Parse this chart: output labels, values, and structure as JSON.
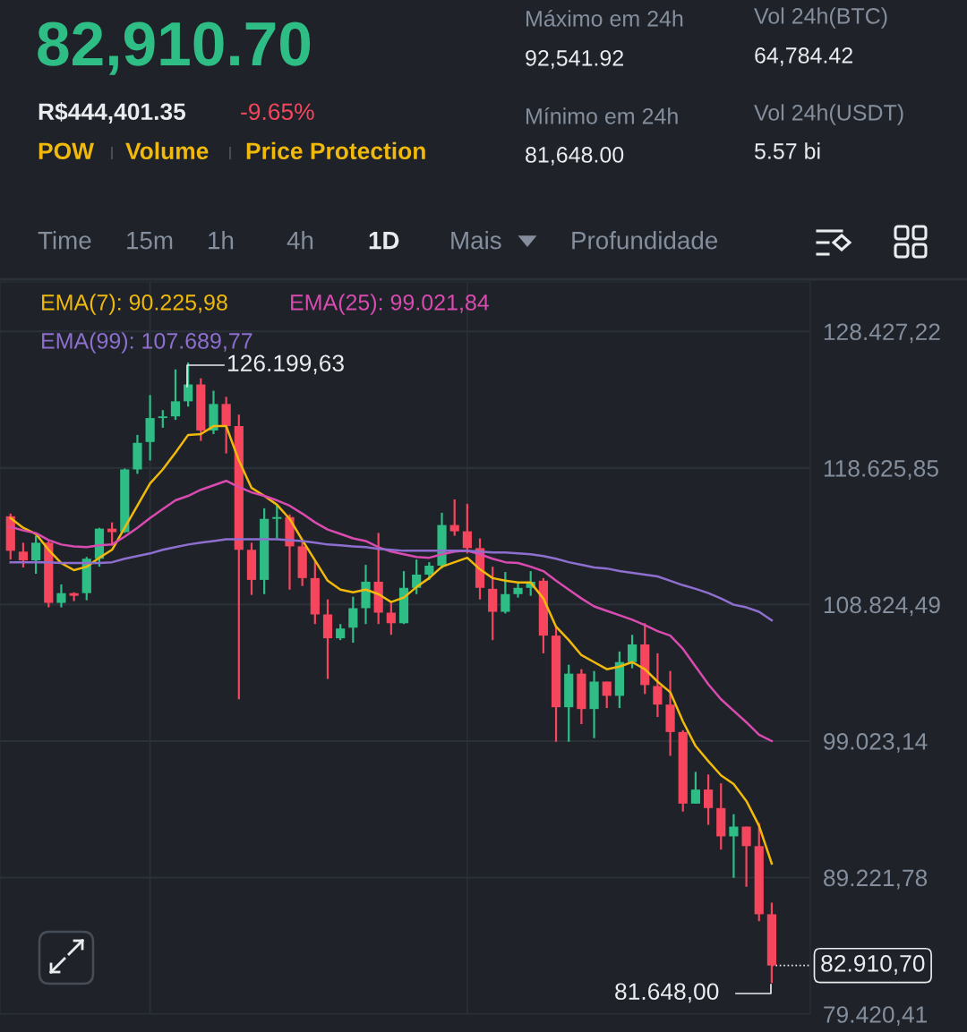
{
  "chart_data": {
    "type": "candlestick",
    "title": "82,910.70",
    "categories": [
      null,
      null,
      null,
      null,
      null,
      null,
      null,
      null,
      null,
      null,
      null,
      null,
      null,
      null,
      null,
      null,
      null,
      null,
      null,
      null,
      null,
      null,
      null,
      null,
      null,
      null,
      null,
      null,
      null,
      null,
      null,
      null,
      null,
      null,
      null,
      null,
      null,
      null,
      null,
      null,
      null,
      null,
      null,
      null,
      null,
      null,
      null,
      null,
      null,
      null,
      null,
      null,
      null,
      null,
      null,
      null,
      null,
      null,
      null,
      null,
      null
    ],
    "ohlc": [
      [
        115160,
        115350,
        112050,
        112680
      ],
      [
        112620,
        113260,
        111480,
        111990
      ],
      [
        111990,
        113760,
        111030,
        113260
      ],
      [
        113260,
        113380,
        108620,
        108940
      ],
      [
        108940,
        110270,
        108620,
        109640
      ],
      [
        109640,
        109700,
        109070,
        109450
      ],
      [
        109640,
        112240,
        109130,
        112110
      ],
      [
        112110,
        114330,
        111540,
        114270
      ],
      [
        114270,
        114720,
        113070,
        114020
      ],
      [
        114020,
        118590,
        113960,
        118520
      ],
      [
        118520,
        121000,
        118210,
        120430
      ],
      [
        120490,
        123860,
        119160,
        122210
      ],
      [
        122210,
        122780,
        121510,
        122330
      ],
      [
        122330,
        125700,
        122080,
        123410
      ],
      [
        123410,
        126199.63,
        123030,
        124620
      ],
      [
        124620,
        125060,
        120560,
        121320
      ],
      [
        121320,
        124170,
        121060,
        123220
      ],
      [
        123220,
        123730,
        119670,
        121630
      ],
      [
        121630,
        122460,
        102020,
        112750
      ],
      [
        112750,
        113260,
        109510,
        110590
      ],
      [
        110590,
        115730,
        109570,
        114970
      ],
      [
        114970,
        115920,
        113570,
        115100
      ],
      [
        115100,
        115290,
        109890,
        113000
      ],
      [
        113000,
        113380,
        110150,
        110720
      ],
      [
        110720,
        111920,
        107420,
        108110
      ],
      [
        108110,
        109190,
        103480,
        106400
      ],
      [
        106400,
        107420,
        106270,
        107100
      ],
      [
        107160,
        109380,
        106080,
        108560
      ],
      [
        108560,
        111670,
        107420,
        110460
      ],
      [
        110460,
        113960,
        107420,
        108240
      ],
      [
        108240,
        108940,
        106650,
        107480
      ],
      [
        107480,
        111220,
        107420,
        110020
      ],
      [
        110020,
        112050,
        109570,
        110970
      ],
      [
        110970,
        111860,
        110590,
        111610
      ],
      [
        111610,
        115410,
        111410,
        114530
      ],
      [
        114530,
        116370,
        113760,
        114080
      ],
      [
        114080,
        116050,
        112490,
        112870
      ],
      [
        112870,
        113570,
        109190,
        110020
      ],
      [
        109950,
        111540,
        106270,
        108300
      ],
      [
        108300,
        111160,
        108180,
        109570
      ],
      [
        109570,
        110400,
        109320,
        110020
      ],
      [
        110020,
        111220,
        109450,
        110460
      ],
      [
        110530,
        110720,
        105320,
        106590
      ],
      [
        106590,
        107230,
        98970,
        101450
      ],
      [
        101450,
        104500,
        98970,
        103860
      ],
      [
        103860,
        104180,
        100240,
        101320
      ],
      [
        101320,
        104050,
        99230,
        103290
      ],
      [
        103290,
        103290,
        101390,
        102270
      ],
      [
        102270,
        105450,
        101390,
        104690
      ],
      [
        104690,
        106650,
        104240,
        105960
      ],
      [
        105960,
        107480,
        102400,
        103040
      ],
      [
        102970,
        105320,
        100750,
        101640
      ],
      [
        101640,
        104050,
        97960,
        99670
      ],
      [
        99670,
        99800,
        93960,
        94530
      ],
      [
        94530,
        96810,
        94530,
        95540
      ],
      [
        95540,
        96620,
        93010,
        94210
      ],
      [
        94210,
        95990,
        91230,
        92180
      ],
      [
        92180,
        93770,
        89200,
        92880
      ],
      [
        92880,
        92880,
        88560,
        91480
      ],
      [
        91480,
        93130,
        86090,
        86590
      ],
      [
        86590,
        87420,
        81648.0,
        82910.7
      ]
    ],
    "colors": [
      "#f6465d",
      "#f6465d",
      "#2ebd85",
      "#f6465d",
      "#2ebd85",
      "#f6465d",
      "#2ebd85",
      "#2ebd85",
      "#f6465d",
      "#2ebd85",
      "#2ebd85",
      "#2ebd85",
      "#2ebd85",
      "#2ebd85",
      "#2ebd85",
      "#f6465d",
      "#2ebd85",
      "#f6465d",
      "#f6465d",
      "#f6465d",
      "#2ebd85",
      "#2ebd85",
      "#f6465d",
      "#f6465d",
      "#f6465d",
      "#f6465d",
      "#2ebd85",
      "#2ebd85",
      "#2ebd85",
      "#f6465d",
      "#f6465d",
      "#2ebd85",
      "#2ebd85",
      "#2ebd85",
      "#2ebd85",
      "#f6465d",
      "#f6465d",
      "#f6465d",
      "#f6465d",
      "#2ebd85",
      "#2ebd85",
      "#2ebd85",
      "#f6465d",
      "#f6465d",
      "#2ebd85",
      "#f6465d",
      "#2ebd85",
      "#f6465d",
      "#2ebd85",
      "#2ebd85",
      "#f6465d",
      "#f6465d",
      "#f6465d",
      "#f6465d",
      "#2ebd85",
      "#f6465d",
      "#f6465d",
      "#2ebd85",
      "#f6465d",
      "#f6465d",
      "#f6465d"
    ],
    "series": [
      {
        "name": "EMA(7): 90.225,98",
        "type": "line",
        "color": "#f0b90b",
        "values": [
          115030,
          114330,
          113890,
          112750,
          111800,
          111290,
          111540,
          112180,
          112750,
          114330,
          115920,
          117510,
          118520,
          119730,
          121000,
          121060,
          121630,
          121630,
          119160,
          117190,
          116620,
          115990,
          114970,
          113450,
          111990,
          110530,
          109890,
          109700,
          109890,
          109570,
          109000,
          109320,
          110080,
          110720,
          111540,
          111860,
          112180,
          111350,
          110720,
          110530,
          110400,
          110400,
          109260,
          107230,
          106270,
          105190,
          104690,
          104180,
          104370,
          104690,
          104180,
          103290,
          102530,
          100430,
          98660,
          97580,
          96560,
          95930,
          94720,
          92940,
          90225.98
        ]
      },
      {
        "name": "EMA(25): 99.021,84",
        "type": "line",
        "color": "#d94bb0",
        "values": [
          114400,
          114140,
          113950,
          113450,
          113130,
          113000,
          112940,
          113070,
          113130,
          113700,
          114330,
          115030,
          115670,
          116300,
          116620,
          117060,
          117380,
          117700,
          117260,
          116870,
          116620,
          116300,
          115920,
          115350,
          114720,
          114210,
          113890,
          113570,
          113380,
          112940,
          112620,
          112430,
          112240,
          112180,
          112430,
          112620,
          112680,
          112430,
          112110,
          111860,
          111800,
          111540,
          111220,
          110530,
          109890,
          109260,
          108690,
          108370,
          108050,
          107730,
          107350,
          106910,
          106590,
          105640,
          104370,
          103100,
          102020,
          101190,
          100370,
          99480,
          99021.84
        ]
      },
      {
        "name": "EMA(99): 107.689,77",
        "type": "line",
        "color": "#8e6fd0",
        "values": [
          111860,
          111860,
          111860,
          111860,
          111800,
          111800,
          111800,
          111800,
          111860,
          112110,
          112300,
          112490,
          112750,
          112940,
          113130,
          113260,
          113380,
          113510,
          113510,
          113510,
          113510,
          113510,
          113450,
          113380,
          113260,
          113130,
          113070,
          113000,
          112940,
          112810,
          112750,
          112680,
          112680,
          112680,
          112680,
          112680,
          112680,
          112620,
          112560,
          112560,
          112490,
          112430,
          112300,
          112110,
          111860,
          111670,
          111480,
          111410,
          111220,
          111100,
          110970,
          110840,
          110530,
          110210,
          109950,
          109640,
          109260,
          108810,
          108620,
          108300,
          107689.77
        ]
      }
    ],
    "ylim": [
      79420.41,
      131980
    ],
    "yticks": [
      {
        "value": 128427.22,
        "label": "128.427,22"
      },
      {
        "value": 118625.85,
        "label": "118.625,85"
      },
      {
        "value": 108824.49,
        "label": "108.824,49"
      },
      {
        "value": 99023.14,
        "label": "99.023,14"
      },
      {
        "value": 89221.78,
        "label": "89.221,78"
      },
      {
        "value": 79420.41,
        "label": "79.420,41"
      }
    ],
    "tick_labels": "y",
    "grid": "y",
    "legend": "top",
    "ref_lines": [
      {
        "axis": "y",
        "value": 82910.7,
        "label": "82.910,70",
        "line_style": "dotted"
      }
    ],
    "annotations": [
      "R$444,401.35",
      "-9.65%",
      "POW",
      "Volume",
      "Price Protection",
      "Máximo em 24h",
      "92,541.92",
      "Mínimo em 24h",
      "81,648.00",
      "Vol 24h(BTC)",
      "64,784.42",
      "Vol 24h(USDT)",
      "5.57 bi",
      "Time",
      "15m",
      "1h",
      "4h",
      "1D",
      "Mais",
      "Profundidade",
      "126.199,63",
      "81.648,00"
    ]
  }
}
